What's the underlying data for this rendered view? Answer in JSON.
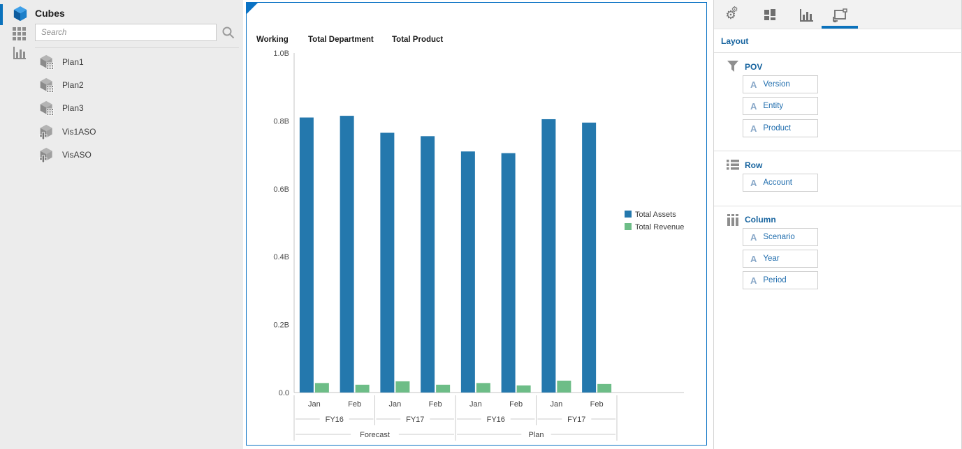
{
  "sidebar": {
    "title": "Cubes",
    "search": {
      "placeholder": "Search"
    },
    "rail_icons": [
      "cubes",
      "grid",
      "chart"
    ],
    "cubes": [
      {
        "label": "Plan1",
        "type": "plan"
      },
      {
        "label": "Plan2",
        "type": "plan"
      },
      {
        "label": "Plan3",
        "type": "plan"
      },
      {
        "label": "Vis1ASO",
        "type": "aso"
      },
      {
        "label": "VisASO",
        "type": "aso"
      }
    ]
  },
  "chart_panel": {
    "pov_headers": [
      "Working",
      "Total Department",
      "Total Product"
    ]
  },
  "chart_data": {
    "type": "bar",
    "title": "",
    "categories_months": [
      "Jan",
      "Feb",
      "Jan",
      "Feb",
      "Jan",
      "Feb",
      "Jan",
      "Feb"
    ],
    "categories_years": [
      "FY16",
      "FY17",
      "FY16",
      "FY17"
    ],
    "categories_scenarios": [
      "Forecast",
      "Plan"
    ],
    "series": [
      {
        "name": "Total Assets",
        "color": "#2478ad",
        "values": [
          0.81,
          0.815,
          0.765,
          0.755,
          0.71,
          0.705,
          0.805,
          0.795
        ]
      },
      {
        "name": "Total Revenue",
        "color": "#6dbd87",
        "values": [
          0.028,
          0.023,
          0.033,
          0.023,
          0.028,
          0.021,
          0.035,
          0.025
        ]
      }
    ],
    "unit": "B",
    "ylim": [
      0,
      1.0
    ],
    "ytick_values": [
      1.0,
      0.8,
      0.6,
      0.4,
      0.2,
      0.0
    ],
    "ytick_labels": [
      "1.0B",
      "0.8B",
      "0.6B",
      "0.4B",
      "0.2B",
      "0.0"
    ],
    "grid": false,
    "legend_position": "right"
  },
  "right_panel": {
    "tabs": [
      {
        "icon": "settings-gears",
        "selected": false
      },
      {
        "icon": "tiles",
        "selected": false
      },
      {
        "icon": "bar-chart",
        "selected": false
      },
      {
        "icon": "layout-frame",
        "selected": true
      }
    ],
    "heading": "Layout",
    "sections": [
      {
        "title": "POV",
        "icon": "filter-funnel",
        "fields": [
          {
            "label": "Version"
          },
          {
            "label": "Entity"
          },
          {
            "label": "Product"
          }
        ]
      },
      {
        "title": "Row",
        "icon": "list-rows",
        "fields": [
          {
            "label": "Account"
          }
        ]
      },
      {
        "title": "Column",
        "icon": "columns",
        "fields": [
          {
            "label": "Scenario"
          },
          {
            "label": "Year"
          },
          {
            "label": "Period"
          }
        ]
      }
    ]
  },
  "colors": {
    "accent_blue": "#0b72bc",
    "panel_border_blue": "#0a72c4",
    "heading_blue": "#17649f",
    "field_label_blue": "#1e6cad",
    "bar_blue": "#2478ad",
    "bar_green": "#6dbd87",
    "sidebar_bg": "#ececec"
  }
}
